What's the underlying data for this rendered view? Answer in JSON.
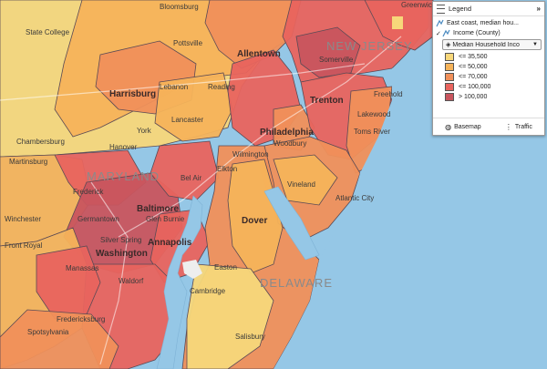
{
  "map": {
    "state_labels": [
      "MARYLAND",
      "NEW JERSEY",
      "DELAWARE"
    ],
    "city_labels": {
      "bloomsburg": "Bloomsburg",
      "greenwich": "Greenwich",
      "state_college": "State College",
      "pottsville": "Pottsville",
      "allentown": "Allentown",
      "somerville": "Somerville",
      "harrisburg": "Harrisburg",
      "lebanon": "Lebanon",
      "reading": "Reading",
      "lancaster": "Lancaster",
      "trenton": "Trenton",
      "freehold": "Freehold",
      "chambersburg": "Chambersburg",
      "york": "York",
      "hanover": "Hanover",
      "philadelphia": "Philadelphia",
      "woodbury": "Woodbury",
      "lakewood": "Lakewood",
      "toms_river": "Toms River",
      "wilmington": "Wilmington",
      "elkton": "Elkton",
      "bel_air": "Bel Air",
      "frederick": "Frederick",
      "martinsburg": "Martinsburg",
      "vineland": "Vineland",
      "baltimore": "Baltimore",
      "atlantic_city": "Atlantic City",
      "germantown": "Germantown",
      "glen_burnie": "Glen Burnie",
      "winchester": "Winchester",
      "dover": "Dover",
      "silver_spring": "Silver Spring",
      "washington": "Washington",
      "annapolis": "Annapolis",
      "front_royal": "Front Royal",
      "manassas": "Manassas",
      "easton": "Easton",
      "waldorf": "Waldorf",
      "cambridge": "Cambridge",
      "salisbury": "Salisbury",
      "fredericksburg": "Fredericksburg",
      "spotsylvania": "Spotsylvania"
    }
  },
  "legend": {
    "title": "Legend",
    "layer_label": "East coast, median hou...",
    "sublayer_label": "Income (County)",
    "dropdown_value": "Median Household Inco",
    "bins": [
      {
        "label": "<= 35,500",
        "color": "#f7d77a"
      },
      {
        "label": "<= 50,000",
        "color": "#f5b35a"
      },
      {
        "label": "<= 70,000",
        "color": "#f0905a"
      },
      {
        "label": "<= 100,000",
        "color": "#e8645e"
      },
      {
        "label": "> 100,000",
        "color": "#c8555e"
      }
    ],
    "basemap_label": "Basemap",
    "traffic_label": "Traffic"
  },
  "colors": {
    "water": "#95c7e6",
    "land_light": "#f7d77a",
    "land_orange": "#f5b35a",
    "land_deep_orange": "#f0905a",
    "land_red": "#e8645e",
    "land_dark": "#c8555e",
    "land_grey": "#eeeeee"
  }
}
